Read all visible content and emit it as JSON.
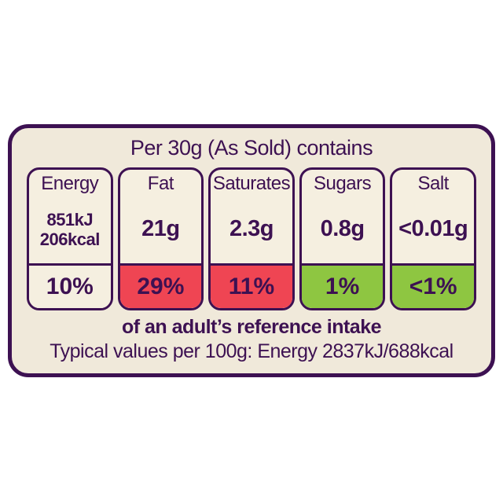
{
  "header": "Per 30g (As Sold) contains",
  "columns": [
    {
      "label": "Energy",
      "value_lines": [
        "851kJ",
        "206kcal"
      ],
      "percent": "10%",
      "level": "none"
    },
    {
      "label": "Fat",
      "value_lines": [
        "21g"
      ],
      "percent": "29%",
      "level": "high"
    },
    {
      "label": "Saturates",
      "value_lines": [
        "2.3g"
      ],
      "percent": "11%",
      "level": "high"
    },
    {
      "label": "Sugars",
      "value_lines": [
        "0.8g"
      ],
      "percent": "1%",
      "level": "low"
    },
    {
      "label": "Salt",
      "value_lines": [
        "<0.01g"
      ],
      "percent": "<1%",
      "level": "low"
    }
  ],
  "footnote": "of an adult’s reference intake",
  "typical_values": "Typical values per 100g: Energy 2837kJ/688kcal",
  "colors": {
    "purple": "#3D1152",
    "card_bg": "#F0E9DA",
    "cell_bg": "#F5EFE0",
    "high": "#EF4553",
    "low": "#8EC641",
    "none": "#F5EFE0"
  }
}
